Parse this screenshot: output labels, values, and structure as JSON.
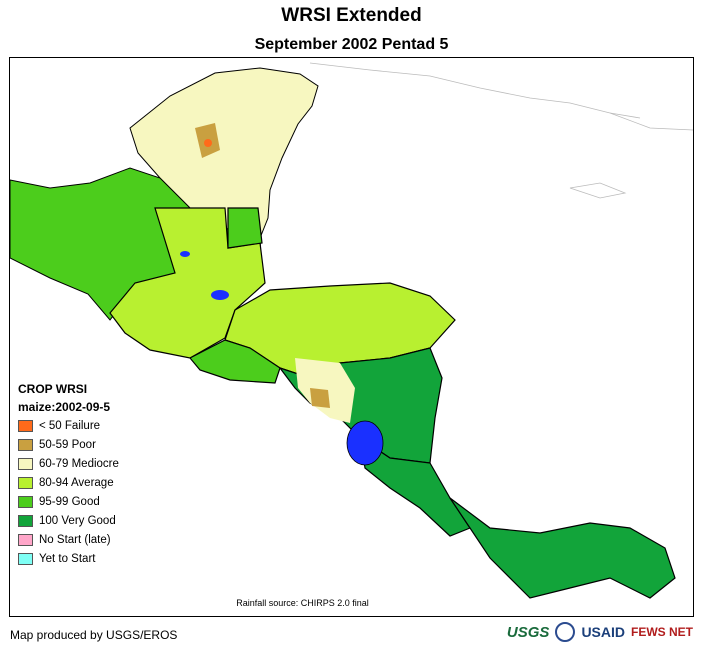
{
  "map": {
    "title": "WRSI Extended",
    "subtitle": "September 2002 Pentad 5",
    "source_note": "Rainfall source: CHIRPS 2.0 final",
    "credit": "Map produced by USGS/EROS"
  },
  "legend": {
    "title": "CROP WRSI",
    "crop_date": "maize:2002-09-5",
    "items": [
      {
        "label": "< 50  Failure",
        "color": "#ff6a1a"
      },
      {
        "label": "50-59 Poor",
        "color": "#c9a040"
      },
      {
        "label": "60-79 Mediocre",
        "color": "#f7f7c0"
      },
      {
        "label": "80-94 Average",
        "color": "#b8f030"
      },
      {
        "label": "95-99 Good",
        "color": "#4ccd1c"
      },
      {
        "label": "100 Very Good",
        "color": "#12a43a"
      },
      {
        "label": "No Start (late)",
        "color": "#ffa6c9"
      },
      {
        "label": "Yet to Start",
        "color": "#7ffff5"
      }
    ]
  },
  "logos": {
    "usgs": "USGS",
    "usaid": "USAID",
    "fewsnet": "FEWS NET"
  }
}
